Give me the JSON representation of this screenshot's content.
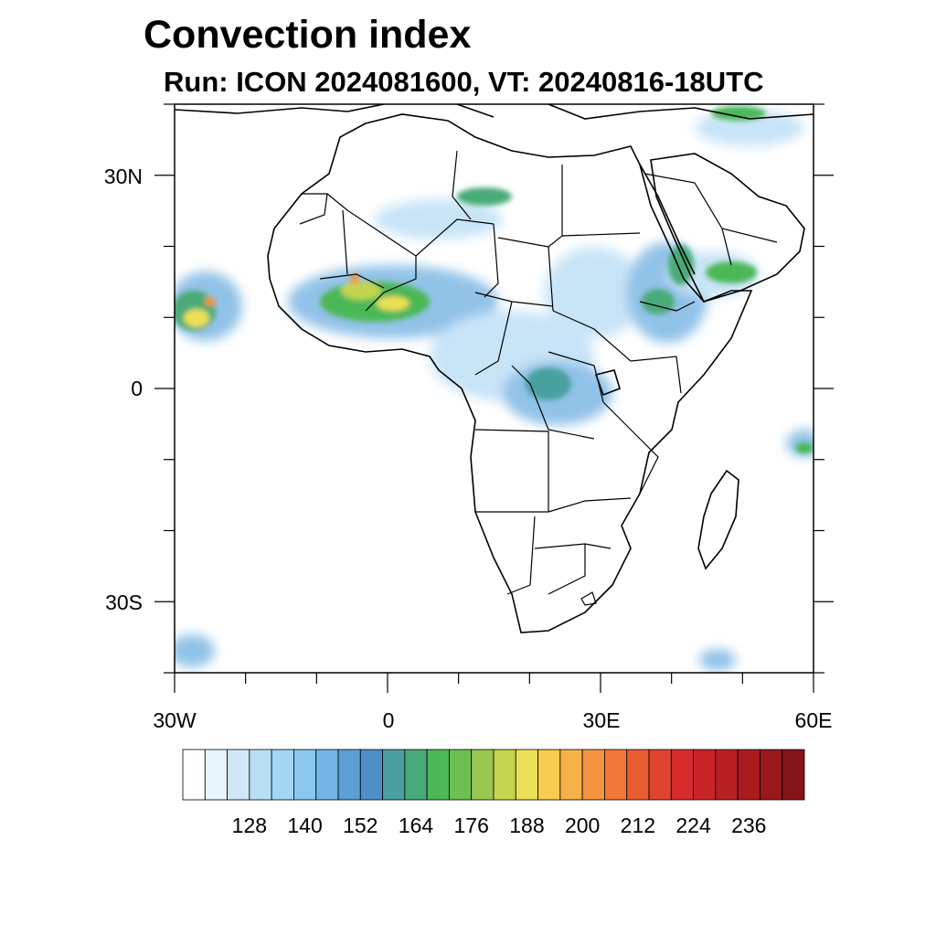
{
  "title": "Convection index",
  "subtitle": "Run: ICON 2024081600,  VT: 20240816-18UTC",
  "map": {
    "lon_range": [
      -30,
      60
    ],
    "lat_range": [
      -40,
      40
    ],
    "lat_labels": [
      "30N",
      "0",
      "30S"
    ],
    "lat_values": [
      30,
      0,
      -30
    ],
    "lon_labels": [
      "30W",
      "0",
      "30E",
      "60E"
    ],
    "lon_values": [
      -30,
      0,
      30,
      60
    ]
  },
  "colorbar": {
    "labels": [
      "128",
      "140",
      "152",
      "164",
      "176",
      "188",
      "200",
      "212",
      "224",
      "236"
    ],
    "colors": [
      "#ffffff",
      "#e8f4fc",
      "#cfe8f8",
      "#b8def6",
      "#a2d6f4",
      "#8ac8ee",
      "#74b4e4",
      "#5c9ed6",
      "#4e8fc8",
      "#4aa0a0",
      "#48aa78",
      "#4cb858",
      "#6cc050",
      "#98c850",
      "#c4d450",
      "#ece058",
      "#f8cc50",
      "#f8b048",
      "#f49440",
      "#f07838",
      "#e85c30",
      "#e04430",
      "#d82c2c",
      "#c82428",
      "#b82024",
      "#a81c20",
      "#98181c",
      "#861418"
    ]
  },
  "overlay_colors": {
    "light": "#bfe0f6",
    "mid": "#7eb8e4",
    "teal": "#4aa0a0",
    "green": "#4cb858",
    "yellow": "#ece058",
    "orange": "#f49440",
    "red": "#d82c2c"
  }
}
